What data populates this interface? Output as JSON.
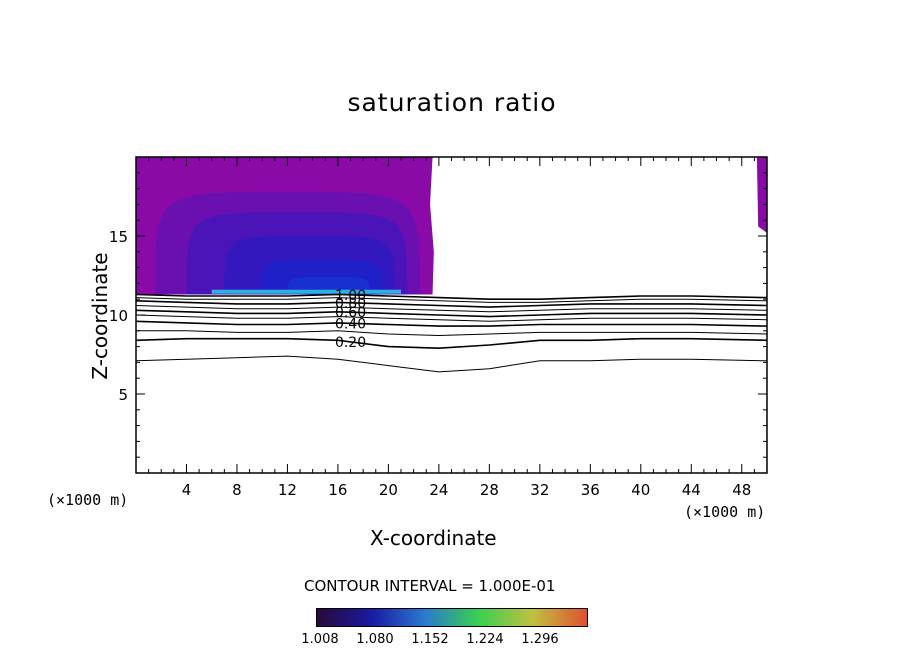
{
  "chart_data": {
    "type": "contour",
    "title": "saturation ratio",
    "xlabel": "X-coordinate",
    "ylabel": "Z-coordinate",
    "x_unit_label": "(×1000 m)",
    "xlim": [
      0,
      50
    ],
    "ylim": [
      0,
      20
    ],
    "x_ticks": [
      "4",
      "8",
      "12",
      "16",
      "20",
      "24",
      "28",
      "32",
      "36",
      "40",
      "44",
      "48"
    ],
    "y_ticks": [
      "5",
      "10",
      "15"
    ],
    "contour_interval_text": "CONTOUR INTERVAL = 1.000E-01",
    "colorbar": {
      "labels": [
        "1.008",
        "1.080",
        "1.152",
        "1.224",
        "1.296"
      ],
      "colors": [
        "#2a0a3a",
        "#1a1aa0",
        "#2a7ad0",
        "#3ad050",
        "#c0c040",
        "#e05030"
      ]
    },
    "contour_lines": [
      {
        "level": "1.00",
        "labeled": true,
        "z": [
          11.3,
          11.2,
          11.2,
          11.2,
          11.3,
          11.2,
          11.1,
          11.0,
          11.0,
          11.1,
          11.2,
          11.2,
          11.1
        ]
      },
      {
        "level": "0.90",
        "labeled": false,
        "z": [
          11.1,
          11.0,
          11.0,
          11.0,
          11.1,
          11.0,
          10.9,
          10.8,
          10.8,
          10.9,
          11.0,
          11.0,
          10.9
        ]
      },
      {
        "level": "0.80",
        "labeled": true,
        "z": [
          10.9,
          10.8,
          10.7,
          10.7,
          10.8,
          10.7,
          10.6,
          10.5,
          10.6,
          10.7,
          10.7,
          10.7,
          10.6
        ]
      },
      {
        "level": "0.70",
        "labeled": false,
        "z": [
          10.6,
          10.5,
          10.4,
          10.4,
          10.5,
          10.4,
          10.3,
          10.2,
          10.3,
          10.4,
          10.4,
          10.4,
          10.3
        ]
      },
      {
        "level": "0.60",
        "labeled": true,
        "z": [
          10.3,
          10.2,
          10.1,
          10.1,
          10.2,
          10.1,
          10.0,
          9.9,
          10.0,
          10.1,
          10.1,
          10.1,
          10.0
        ]
      },
      {
        "level": "0.50",
        "labeled": false,
        "z": [
          10.0,
          9.9,
          9.8,
          9.8,
          9.9,
          9.8,
          9.7,
          9.6,
          9.7,
          9.8,
          9.8,
          9.8,
          9.7
        ]
      },
      {
        "level": "0.40",
        "labeled": true,
        "z": [
          9.6,
          9.5,
          9.4,
          9.4,
          9.5,
          9.4,
          9.3,
          9.3,
          9.4,
          9.4,
          9.4,
          9.4,
          9.3
        ]
      },
      {
        "level": "0.30",
        "labeled": false,
        "z": [
          9.0,
          9.0,
          8.9,
          8.9,
          9.0,
          8.8,
          8.7,
          8.8,
          8.9,
          8.9,
          8.9,
          8.9,
          8.8
        ]
      },
      {
        "level": "0.20",
        "labeled": true,
        "z": [
          8.4,
          8.5,
          8.5,
          8.5,
          8.4,
          8.0,
          7.9,
          8.1,
          8.4,
          8.4,
          8.5,
          8.5,
          8.4
        ]
      },
      {
        "level": "0.10",
        "labeled": false,
        "z": [
          7.1,
          7.2,
          7.3,
          7.4,
          7.2,
          6.8,
          6.4,
          6.6,
          7.1,
          7.1,
          7.2,
          7.2,
          7.1
        ]
      }
    ],
    "contour_x": [
      0,
      4,
      8,
      12,
      16,
      20,
      24,
      28,
      32,
      36,
      40,
      44,
      50
    ]
  }
}
